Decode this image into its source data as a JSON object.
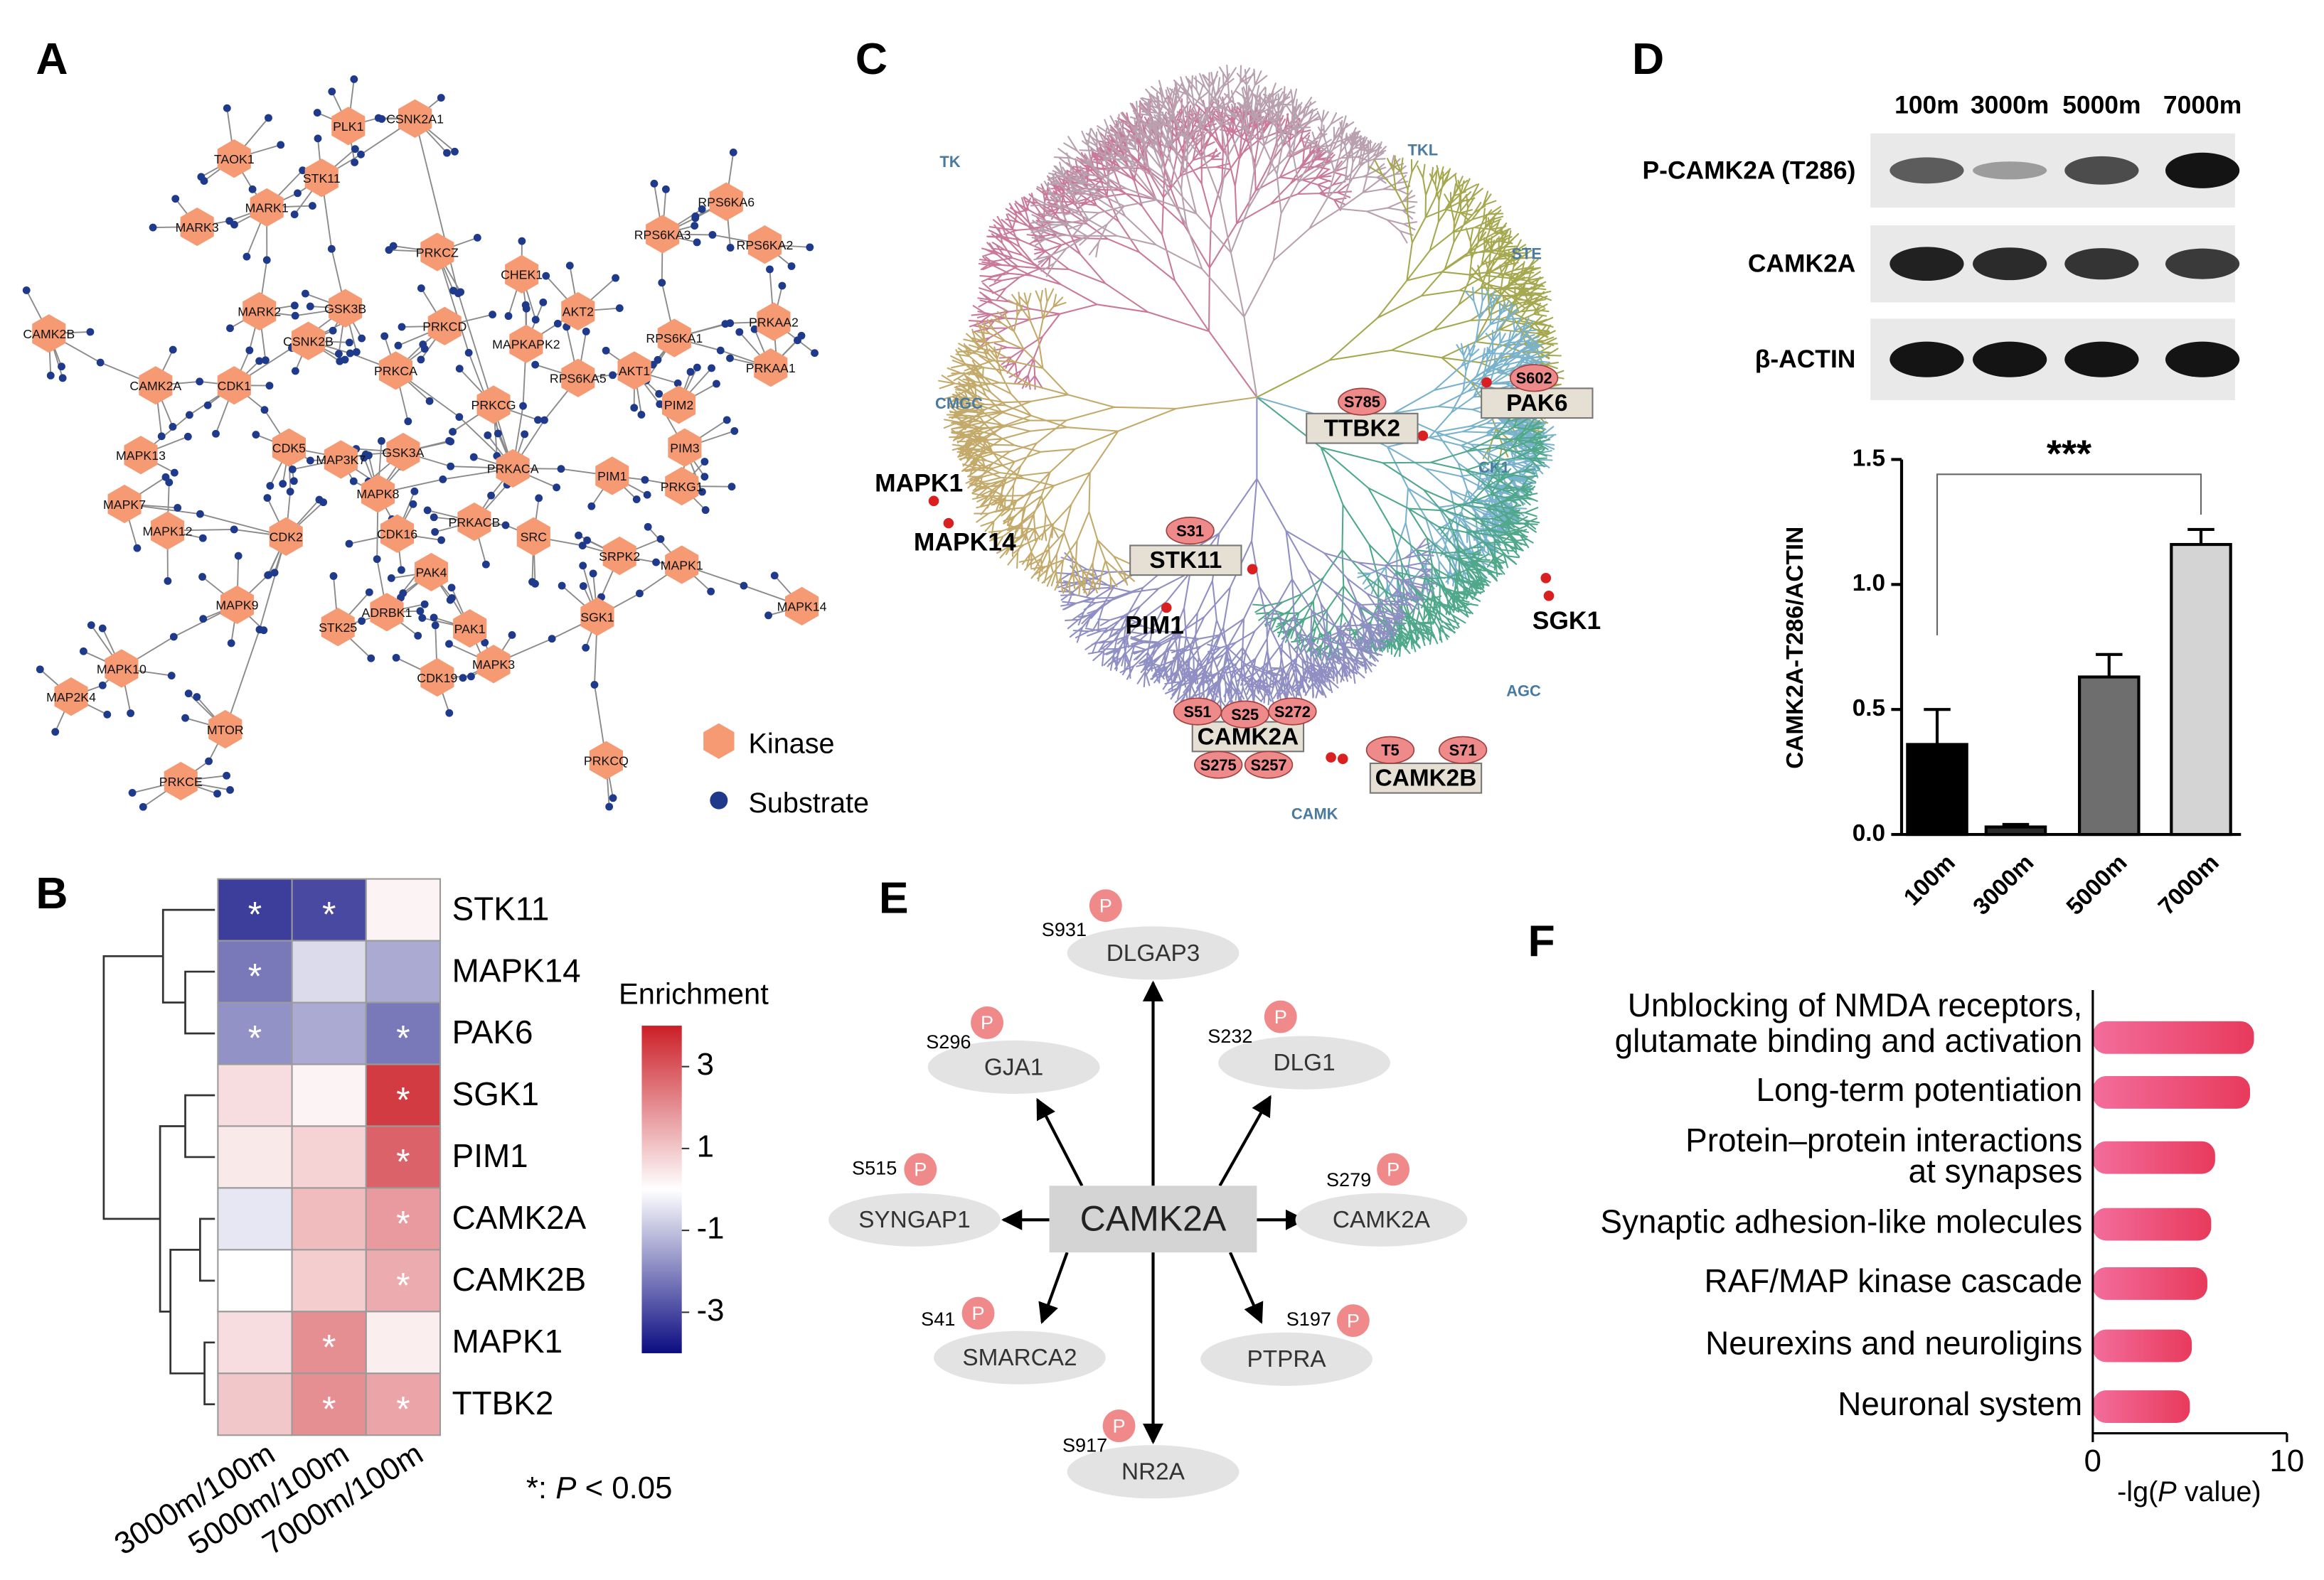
{
  "panel_labels": [
    "A",
    "B",
    "C",
    "D",
    "E",
    "F"
  ],
  "network": {
    "kinases": [
      "PLK1",
      "CSNK2A1",
      "TAOK1",
      "STK11",
      "MARK1",
      "MARK3",
      "PRKCZ",
      "CHEK1",
      "RPS6KA6",
      "RPS6KA3",
      "RPS6KA2",
      "CAMK2B",
      "MARK2",
      "GSK3B",
      "CSNK2B",
      "PRKCD",
      "AKT2",
      "RPS6KA1",
      "PRKAA2",
      "PRKAA1",
      "CAMK2A",
      "CDK1",
      "PRKCA",
      "MAPKAPK2",
      "RPS6KA5",
      "AKT1",
      "PRKCG",
      "PIM2",
      "PIM3",
      "MAPK13",
      "CDK5",
      "MAP3K7",
      "GSK3A",
      "PRKACA",
      "PIM1",
      "PRKG1",
      "MAPK7",
      "MAPK12",
      "CDK2",
      "MAPK8",
      "CDK16",
      "PRKACB",
      "SRC",
      "SRPK2",
      "MAPK1",
      "PAK4",
      "MAPK14",
      "MAPK9",
      "STK25",
      "ADRBK1",
      "PAK1",
      "SGK1",
      "MAPK10",
      "CDK19",
      "MAPK3",
      "MAP2K4",
      "MTOR",
      "PRKCE",
      "PRKCQ"
    ],
    "legend": [
      "Kinase",
      "Substrate"
    ]
  },
  "kinome": {
    "groups": [
      "TK",
      "TKL",
      "STE",
      "CK1",
      "AGC",
      "CAMK",
      "CMGC"
    ],
    "kinases": [
      {
        "name": "MAPK1",
        "sites": []
      },
      {
        "name": "MAPK14",
        "sites": []
      },
      {
        "name": "PIM1",
        "sites": []
      },
      {
        "name": "SGK1",
        "sites": []
      },
      {
        "name": "STK11",
        "sites": [
          "S31"
        ]
      },
      {
        "name": "TTBK2",
        "sites": [
          "S785"
        ]
      },
      {
        "name": "PAK6",
        "sites": [
          "S602"
        ]
      },
      {
        "name": "CAMK2A",
        "sites": [
          "S51",
          "S25",
          "S272",
          "S275",
          "S257"
        ]
      },
      {
        "name": "CAMK2B",
        "sites": [
          "T5",
          "S71"
        ]
      }
    ]
  },
  "blot": {
    "lanes": [
      "100m",
      "3000m",
      "5000m",
      "7000m"
    ],
    "rows": [
      "P-CAMK2A (T286)",
      "CAMK2A",
      "β-ACTIN"
    ]
  },
  "interaction": {
    "center": "CAMK2A",
    "phospho_label": "P",
    "targets": [
      {
        "name": "DLGAP3",
        "site": "S931"
      },
      {
        "name": "GJA1",
        "site": "S296"
      },
      {
        "name": "DLG1",
        "site": "S232"
      },
      {
        "name": "SYNGAP1",
        "site": "S515"
      },
      {
        "name": "CAMK2A",
        "site": "S279"
      },
      {
        "name": "SMARCA2",
        "site": "S41"
      },
      {
        "name": "PTPRA",
        "site": "S197"
      },
      {
        "name": "NR2A",
        "site": "S917"
      }
    ]
  },
  "chart_data": [
    {
      "type": "heatmap",
      "rows": [
        "STK11",
        "MAPK14",
        "PAK6",
        "SGK1",
        "PIM1",
        "CAMK2A",
        "CAMK2B",
        "MAPK1",
        "TTBK2"
      ],
      "categories": [
        "3000m/100m",
        "5000m/100m",
        "7000m/100m"
      ],
      "values": [
        [
          -3.2,
          -3.0,
          0.2
        ],
        [
          -2.2,
          -0.6,
          -1.4
        ],
        [
          -1.8,
          -1.4,
          -2.2
        ],
        [
          0.6,
          0.2,
          3.5
        ],
        [
          0.4,
          0.8,
          2.8
        ],
        [
          -0.4,
          1.2,
          1.8
        ],
        [
          0.0,
          0.9,
          1.5
        ],
        [
          0.6,
          2.0,
          0.3
        ],
        [
          1.0,
          2.0,
          1.6
        ]
      ],
      "significant": [
        [
          true,
          true,
          false
        ],
        [
          true,
          false,
          false
        ],
        [
          true,
          false,
          true
        ],
        [
          false,
          false,
          true
        ],
        [
          false,
          false,
          true
        ],
        [
          false,
          false,
          true
        ],
        [
          false,
          false,
          true
        ],
        [
          false,
          true,
          false
        ],
        [
          false,
          true,
          true
        ]
      ],
      "star_label": "*",
      "colorbar_title": "Enrichment",
      "zlim": [
        -4,
        4
      ],
      "zticks": [
        3,
        1,
        -1,
        -3
      ],
      "colors": [
        "#0c0c82",
        "#ffffff",
        "#cc1f27"
      ],
      "note_parts": [
        "*: ",
        "P",
        " < 0.05"
      ]
    },
    {
      "type": "bar",
      "categories": [
        "100m",
        "3000m",
        "5000m",
        "7000m"
      ],
      "values": [
        0.36,
        0.03,
        0.63,
        1.16
      ],
      "errors": [
        0.14,
        0.01,
        0.09,
        0.06
      ],
      "colors": [
        "#000000",
        "#2b2b2b",
        "#6e6e6e",
        "#d4d4d4"
      ],
      "ylim": [
        0,
        1.5
      ],
      "yticks": [
        {
          "value": 0,
          "label": "0.0"
        },
        0.5,
        {
          "value": 1,
          "label": "1.0"
        },
        1.5
      ],
      "ylabel": "CAMK2A-T286/ACTIN",
      "annotation": "***"
    },
    {
      "type": "barh",
      "categories": [
        [
          "Unblocking of NMDA receptors,",
          "glutamate binding and activation"
        ],
        [
          "Long-term potentiation"
        ],
        [
          "Protein–protein interactions",
          "at synapses"
        ],
        [
          "Synaptic adhesion-like molecules"
        ],
        [
          "RAF/MAP kinase cascade"
        ],
        [
          "Neurexins and neuroligins"
        ],
        [
          "Neuronal system"
        ]
      ],
      "values": [
        8.3,
        8.1,
        6.3,
        6.1,
        5.9,
        5.1,
        5.0
      ],
      "color": "#ec4f7e",
      "xlim": [
        0,
        10
      ],
      "xticks": [
        0,
        10
      ],
      "xlabel_parts": [
        "-lg(",
        "P",
        " value)"
      ]
    }
  ]
}
